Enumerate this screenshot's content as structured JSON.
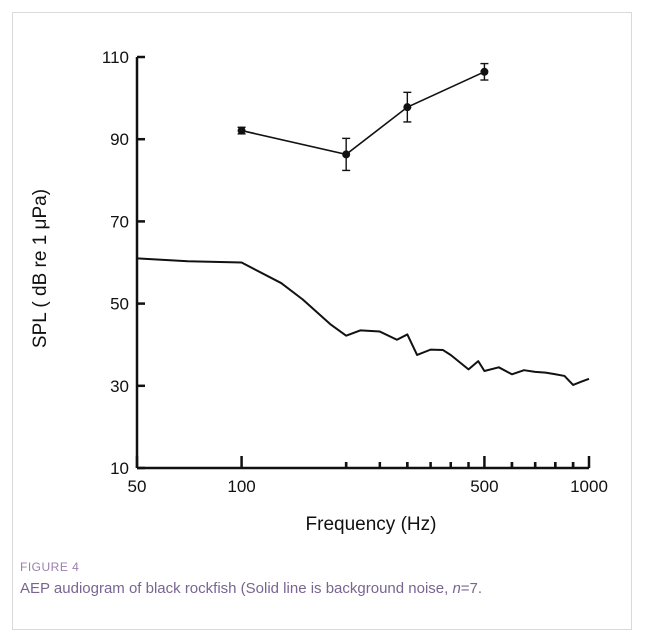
{
  "chart_data": {
    "type": "line",
    "xscale": "log",
    "xlim": [
      50,
      1000
    ],
    "ylim": [
      10,
      110
    ],
    "xticks": [
      50,
      100,
      500,
      1000
    ],
    "yticks": [
      10,
      30,
      50,
      70,
      90,
      110
    ],
    "xlabel": "Frequency (Hz)",
    "ylabel": "SPL ( dB re 1 μPa)",
    "grid": false,
    "series": [
      {
        "kind": "errorbar",
        "marker": "circle",
        "color": "#111111",
        "x": [
          100,
          200,
          300,
          500
        ],
        "y": [
          92.1,
          86.3,
          97.8,
          106.4
        ],
        "err": [
          0.8,
          3.9,
          3.6,
          2.0
        ]
      },
      {
        "kind": "line",
        "color": "#111111",
        "x": [
          50,
          70,
          100,
          130,
          150,
          180,
          200,
          220,
          250,
          280,
          300,
          320,
          350,
          380,
          400,
          450,
          480,
          500,
          550,
          600,
          650,
          700,
          750,
          800,
          850,
          900,
          950,
          1000
        ],
        "y": [
          61,
          60.3,
          60,
          55,
          51,
          45,
          42.2,
          43.5,
          43.2,
          41.2,
          42.5,
          37.5,
          38.8,
          38.7,
          37.5,
          34,
          36,
          33.6,
          34.5,
          32.8,
          33.8,
          33.4,
          33.2,
          32.8,
          32.4,
          30.2,
          31,
          31.7
        ]
      }
    ]
  },
  "figure": {
    "label": "FIGURE 4",
    "caption_text": "AEP audiogram of black rockfish (Solid line is background noise, ",
    "caption_n_symbol": "n",
    "caption_n_value": "=7."
  }
}
